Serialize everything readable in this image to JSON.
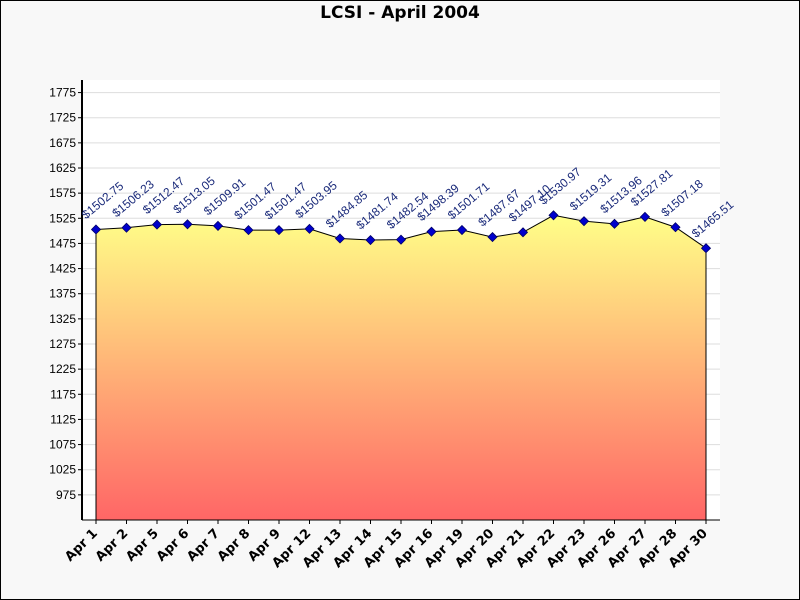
{
  "chart_data": {
    "type": "area",
    "title": "LCSI - April 2004",
    "xlabel": "",
    "ylabel": "",
    "ylim": [
      925,
      1800
    ],
    "yticks": [
      975,
      1025,
      1075,
      1125,
      1175,
      1225,
      1275,
      1325,
      1375,
      1425,
      1475,
      1525,
      1575,
      1625,
      1675,
      1725,
      1775
    ],
    "grid": true,
    "legend": "none",
    "fill_gradient": [
      "#ffff88",
      "#ff6666"
    ],
    "line_color": "#000000",
    "marker_color": "#0000cc",
    "categories": [
      "Apr 1",
      "Apr 2",
      "Apr 5",
      "Apr 6",
      "Apr 7",
      "Apr 8",
      "Apr 9",
      "Apr 12",
      "Apr 13",
      "Apr 14",
      "Apr 15",
      "Apr 16",
      "Apr 19",
      "Apr 20",
      "Apr 21",
      "Apr 22",
      "Apr 23",
      "Apr 26",
      "Apr 27",
      "Apr 28",
      "Apr 30"
    ],
    "values": [
      1502.75,
      1506.23,
      1512.47,
      1513.05,
      1509.91,
      1501.47,
      1501.47,
      1503.95,
      1484.85,
      1481.74,
      1482.54,
      1498.39,
      1501.71,
      1487.67,
      1497.1,
      1530.97,
      1519.31,
      1513.96,
      1527.81,
      1507.18,
      1465.51
    ],
    "data_labels": [
      "$1502.75",
      "$1506.23",
      "$1512.47",
      "$1513.05",
      "$1509.91",
      "$1501.47",
      "$1501.47",
      "$1503.95",
      "$1484.85",
      "$1481.74",
      "$1482.54",
      "$1498.39",
      "$1501.71",
      "$1487.67",
      "$1497.10",
      "$1530.97",
      "$1519.31",
      "$1513.96",
      "$1527.81",
      "$1507.18",
      "$1465.51"
    ]
  }
}
